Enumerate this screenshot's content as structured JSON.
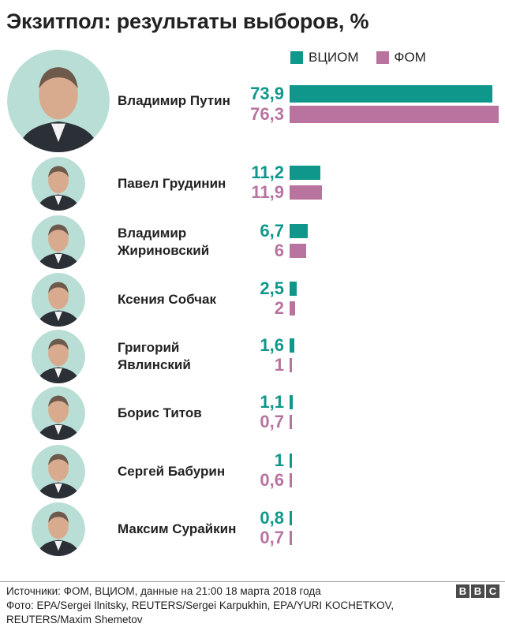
{
  "title": "Экзитпол: результаты выборов, %",
  "colors": {
    "vciom": "#10978c",
    "fom": "#b8749f",
    "avatar_bg": "#b9ded6"
  },
  "legend": {
    "vciom": "ВЦИОМ",
    "fom": "ФОМ"
  },
  "chart_data": {
    "type": "bar",
    "title": "Экзитпол: результаты выборов, %",
    "orientation": "horizontal",
    "categories": [
      "Владимир Путин",
      "Павел Грудинин",
      "Владимир Жириновский",
      "Ксения Собчак",
      "Григорий Явлинский",
      "Борис Титов",
      "Сергей Бабурин",
      "Максим Сурайкин"
    ],
    "series": [
      {
        "name": "ВЦИОМ",
        "values": [
          73.9,
          11.2,
          6.7,
          2.5,
          1.6,
          1.1,
          1,
          0.8
        ],
        "labels": [
          "73,9",
          "11,2",
          "6,7",
          "2,5",
          "1,6",
          "1,1",
          "1",
          "0,8"
        ]
      },
      {
        "name": "ФОМ",
        "values": [
          76.3,
          11.9,
          6,
          2,
          1,
          0.7,
          0.6,
          0.7
        ],
        "labels": [
          "76,3",
          "11,9",
          "6",
          "2",
          "1",
          "0,7",
          "0,6",
          "0,7"
        ]
      }
    ],
    "xlim": [
      0,
      76.3
    ],
    "grid": false,
    "legend": "top-right"
  },
  "candidates": [
    {
      "name_line1": "Владимир Путин",
      "name_line2": ""
    },
    {
      "name_line1": "Павел Грудинин",
      "name_line2": ""
    },
    {
      "name_line1": "Владимир",
      "name_line2": "Жириновский"
    },
    {
      "name_line1": "Ксения Собчак",
      "name_line2": ""
    },
    {
      "name_line1": "Григорий",
      "name_line2": "Явлинский"
    },
    {
      "name_line1": "Борис Титов",
      "name_line2": ""
    },
    {
      "name_line1": "Сергей Бабурин",
      "name_line2": ""
    },
    {
      "name_line1": "Максим Сурайкин",
      "name_line2": ""
    }
  ],
  "footer": {
    "sources": "Источники: ФОМ, ВЦИОМ, данные на 21:00 18 марта 2018 года",
    "photo": "Фото: EPA/Sergei Ilnitsky, REUTERS/Sergei Karpukhin, EPA/YURI KOCHETKOV, REUTERS/Maxim Shemetov"
  },
  "logo": [
    "B",
    "B",
    "C"
  ]
}
